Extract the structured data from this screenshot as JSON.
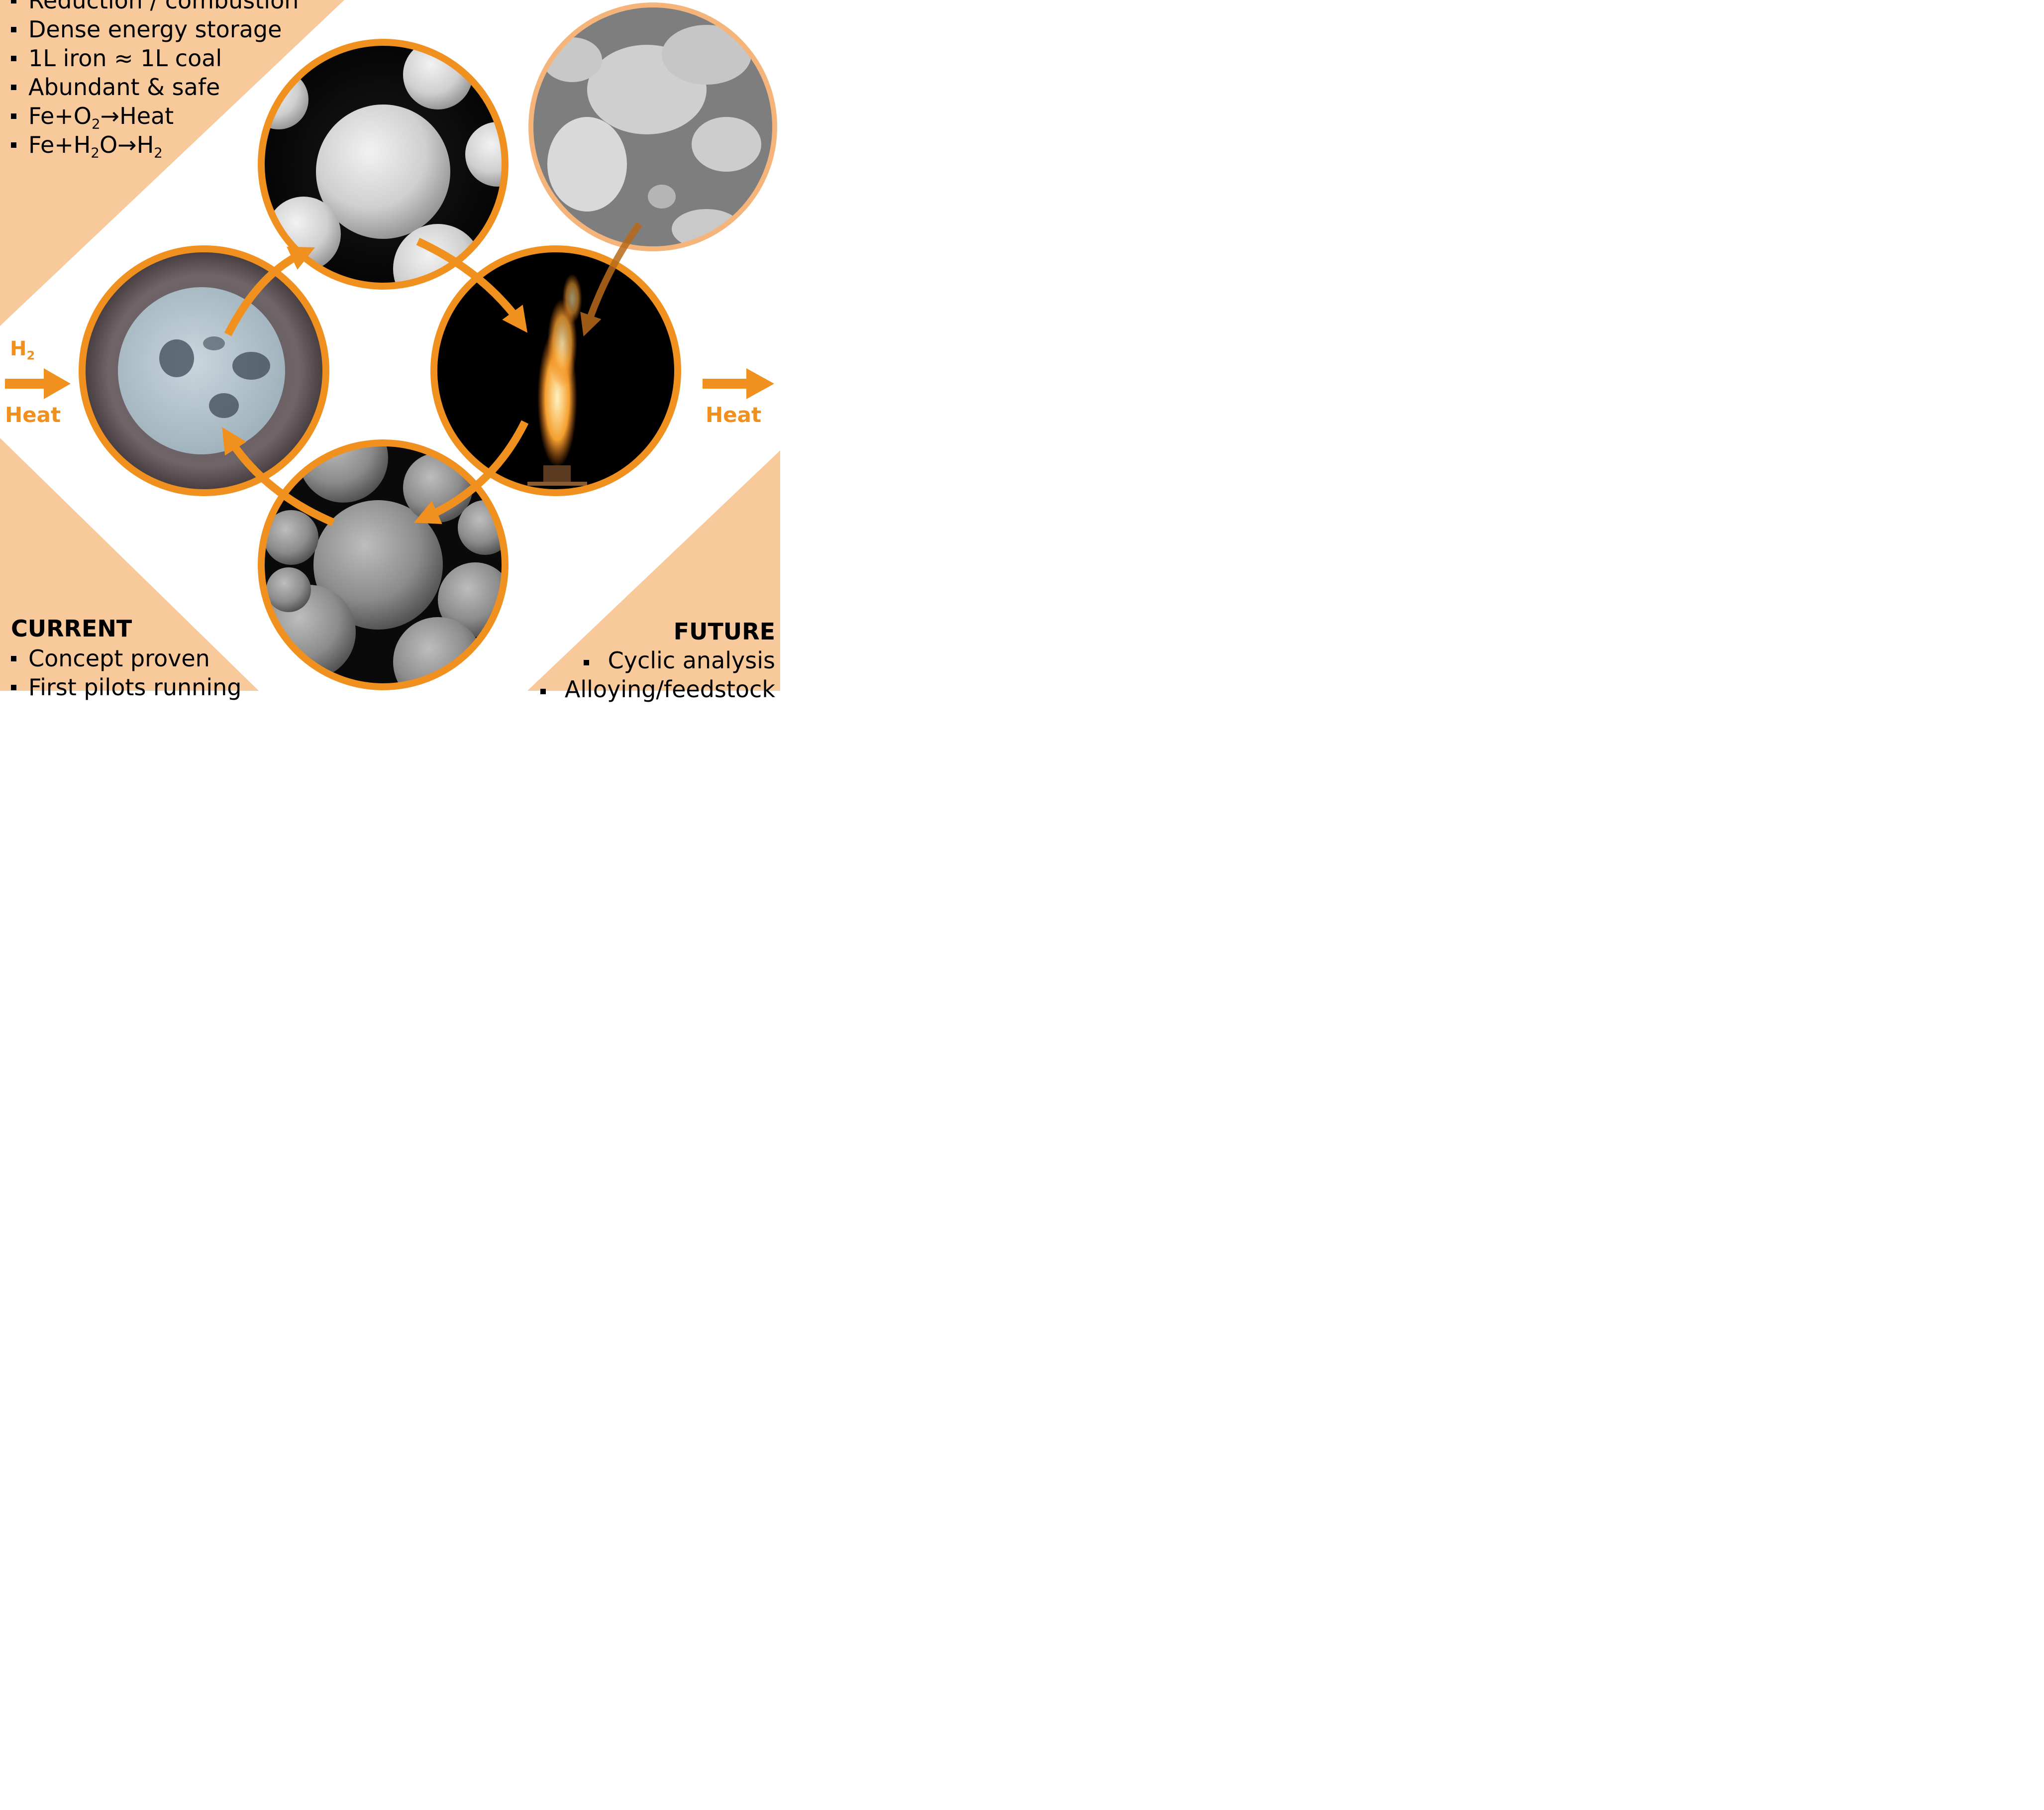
{
  "top_left": {
    "items": [
      "Reduction / combustion",
      "Dense energy storage",
      "1L iron ≈ 1L coal",
      "Abundant & safe",
      {
        "pre": "Fe+O",
        "sub": "2",
        "post": "→Heat"
      },
      {
        "pre": "Fe+H",
        "sub": "2",
        "mid": "O→H",
        "sub2": "2"
      }
    ]
  },
  "current": {
    "heading": "CURRENT",
    "items": [
      "Concept proven",
      "First pilots running"
    ]
  },
  "future": {
    "heading": "FUTURE",
    "items": [
      "Cyclic analysis",
      "Alloying/feedstock"
    ]
  },
  "inputs": {
    "gas": "H",
    "gas_sub": "2",
    "heat": "Heat"
  },
  "outputs": {
    "heat": "Heat"
  },
  "colors": {
    "accent": "#f0901e",
    "panel": "#f8c99a",
    "ring_light": "#f5b57a"
  },
  "icons": {
    "cycle_arrows": "curved-arrow-icon",
    "flow_arrows": "right-arrow-icon"
  }
}
